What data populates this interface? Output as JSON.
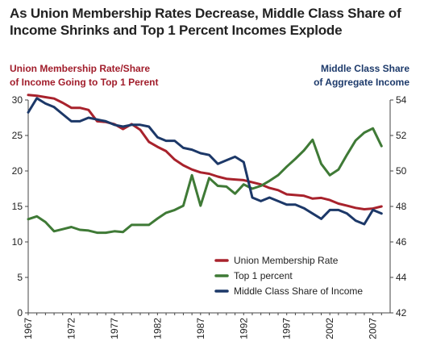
{
  "chart_data": {
    "type": "line",
    "title": "As Union Membership Rates Decrease, Middle Class Share of Income Shrinks and Top 1 Percent Incomes Explode",
    "ylabel_left": [
      "Union Membership Rate/Share",
      "of Income Going to Top 1 Perent"
    ],
    "ylabel_right": [
      "Middle Class Share",
      "of Aggregate Income"
    ],
    "ylim_left": [
      0,
      30
    ],
    "ylim_right": [
      42,
      54
    ],
    "yticks_left": [
      "0",
      "5",
      "10",
      "15",
      "20",
      "25",
      "30"
    ],
    "yticks_right": [
      "42",
      "44",
      "46",
      "48",
      "50",
      "52",
      "54"
    ],
    "xlim": [
      1967,
      2009
    ],
    "xticks": [
      "1967",
      "1972",
      "1977",
      "1982",
      "1987",
      "1992",
      "1997",
      "2002",
      "2007"
    ],
    "grid": false,
    "legend_position": "bottom-right",
    "colors": {
      "left_axis": "#a11d2b",
      "right_axis": "#1d3a6b"
    },
    "x": [
      1967,
      1968,
      1969,
      1970,
      1971,
      1972,
      1973,
      1974,
      1975,
      1976,
      1977,
      1978,
      1979,
      1980,
      1981,
      1982,
      1983,
      1984,
      1985,
      1986,
      1987,
      1988,
      1989,
      1990,
      1991,
      1992,
      1993,
      1994,
      1995,
      1996,
      1997,
      1998,
      1999,
      2000,
      2001,
      2002,
      2003,
      2004,
      2005,
      2006,
      2007,
      2008
    ],
    "series": [
      {
        "name": "Union Membership Rate",
        "axis": "left",
        "color": "#a8222c",
        "values": [
          30.7,
          30.6,
          30.4,
          30.2,
          29.6,
          28.9,
          28.9,
          28.6,
          27.0,
          26.9,
          26.6,
          25.9,
          26.6,
          25.8,
          24.1,
          23.4,
          22.8,
          21.6,
          20.8,
          20.2,
          19.8,
          19.6,
          19.2,
          18.9,
          18.8,
          18.7,
          18.4,
          18.1,
          17.6,
          17.3,
          16.7,
          16.6,
          16.5,
          16.1,
          16.2,
          15.9,
          15.4,
          15.1,
          14.8,
          14.6,
          14.7,
          15.0
        ]
      },
      {
        "name": "Top 1 percent",
        "axis": "left",
        "color": "#3f7a36",
        "values": [
          13.2,
          13.6,
          12.8,
          11.5,
          11.8,
          12.1,
          11.7,
          11.6,
          11.3,
          11.3,
          11.5,
          11.4,
          12.4,
          12.4,
          12.4,
          13.3,
          14.1,
          14.5,
          15.1,
          19.4,
          15.1,
          19.0,
          17.9,
          17.8,
          16.8,
          18.1,
          17.5,
          17.9,
          18.6,
          19.4,
          20.6,
          21.7,
          22.9,
          24.4,
          21.0,
          19.4,
          20.2,
          22.3,
          24.3,
          25.4,
          26.0,
          23.5
        ]
      },
      {
        "name": "Middle Class Share of Income",
        "axis": "right",
        "color": "#1c3868",
        "values": [
          53.3,
          54.1,
          53.8,
          53.6,
          53.2,
          52.8,
          52.8,
          53.0,
          52.9,
          52.8,
          52.6,
          52.5,
          52.6,
          52.6,
          52.5,
          51.9,
          51.7,
          51.7,
          51.3,
          51.2,
          51.0,
          50.9,
          50.4,
          50.6,
          50.8,
          50.5,
          48.5,
          48.3,
          48.5,
          48.3,
          48.1,
          48.1,
          47.9,
          47.6,
          47.3,
          47.8,
          47.8,
          47.6,
          47.2,
          47.0,
          47.8,
          47.6
        ]
      }
    ]
  }
}
